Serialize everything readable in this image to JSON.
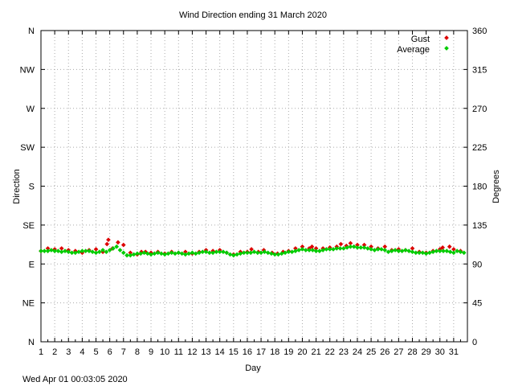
{
  "chart_data": {
    "type": "scatter",
    "title": "Wind Direction ending 31 March 2020",
    "xlabel": "Day",
    "ylabel_left": "Direction",
    "ylabel_right": "Degrees",
    "footer": "Wed Apr 01 00:03:05 2020",
    "xlim": [
      1,
      32
    ],
    "ylim": [
      0,
      360
    ],
    "grid": true,
    "legend_position": "top-right",
    "x_ticks": [
      "1",
      "2",
      "3",
      "4",
      "5",
      "6",
      "7",
      "8",
      "9",
      "10",
      "11",
      "12",
      "13",
      "14",
      "15",
      "16",
      "17",
      "18",
      "19",
      "20",
      "21",
      "22",
      "23",
      "24",
      "25",
      "26",
      "27",
      "28",
      "29",
      "30",
      "31"
    ],
    "y_ticks_left": [
      "N",
      "NE",
      "E",
      "SE",
      "S",
      "SW",
      "W",
      "NW",
      "N"
    ],
    "y_ticks_right": [
      "0",
      "45",
      "90",
      "135",
      "180",
      "225",
      "270",
      "315",
      "360"
    ],
    "series": [
      {
        "name": "Gust",
        "color": "#dd0000",
        "points": [
          [
            1.0,
            105
          ],
          [
            1.5,
            108
          ],
          [
            2.0,
            107
          ],
          [
            2.5,
            108
          ],
          [
            3.0,
            106
          ],
          [
            3.5,
            105
          ],
          [
            4.0,
            103
          ],
          [
            4.5,
            106
          ],
          [
            5.0,
            107
          ],
          [
            5.5,
            104
          ],
          [
            5.8,
            113
          ],
          [
            5.9,
            118
          ],
          [
            6.2,
            108
          ],
          [
            6.6,
            115
          ],
          [
            7.0,
            112
          ],
          [
            7.5,
            103
          ],
          [
            8.0,
            101
          ],
          [
            8.3,
            104
          ],
          [
            8.6,
            104
          ],
          [
            9.0,
            103
          ],
          [
            9.5,
            104
          ],
          [
            10.0,
            102
          ],
          [
            10.5,
            104
          ],
          [
            11.0,
            103
          ],
          [
            11.5,
            104
          ],
          [
            12.0,
            102
          ],
          [
            12.5,
            104
          ],
          [
            13.0,
            106
          ],
          [
            13.5,
            105
          ],
          [
            14.0,
            106
          ],
          [
            14.5,
            103
          ],
          [
            15.0,
            101
          ],
          [
            15.5,
            104
          ],
          [
            16.0,
            104
          ],
          [
            16.3,
            107
          ],
          [
            16.8,
            104
          ],
          [
            17.2,
            106
          ],
          [
            17.8,
            103
          ],
          [
            18.2,
            102
          ],
          [
            18.6,
            104
          ],
          [
            19.0,
            105
          ],
          [
            19.5,
            108
          ],
          [
            20.0,
            110
          ],
          [
            20.5,
            108
          ],
          [
            20.7,
            110
          ],
          [
            21.0,
            108
          ],
          [
            21.5,
            108
          ],
          [
            22.0,
            109
          ],
          [
            22.5,
            110
          ],
          [
            22.8,
            113
          ],
          [
            23.2,
            111
          ],
          [
            23.5,
            114
          ],
          [
            24.0,
            112
          ],
          [
            24.5,
            112
          ],
          [
            25.0,
            110
          ],
          [
            25.5,
            108
          ],
          [
            26.0,
            110
          ],
          [
            26.5,
            106
          ],
          [
            27.0,
            107
          ],
          [
            27.5,
            106
          ],
          [
            28.0,
            108
          ],
          [
            28.5,
            104
          ],
          [
            29.0,
            103
          ],
          [
            29.5,
            105
          ],
          [
            30.0,
            107
          ],
          [
            30.2,
            109
          ],
          [
            30.7,
            110
          ],
          [
            31.0,
            107
          ],
          [
            31.5,
            105
          ]
        ]
      },
      {
        "name": "Average",
        "color": "#00cc00",
        "points": [
          [
            1.0,
            105
          ],
          [
            1.25,
            105
          ],
          [
            1.5,
            105
          ],
          [
            1.75,
            106
          ],
          [
            2.0,
            105
          ],
          [
            2.25,
            105
          ],
          [
            2.5,
            104
          ],
          [
            2.75,
            105
          ],
          [
            3.0,
            104
          ],
          [
            3.25,
            103
          ],
          [
            3.5,
            103
          ],
          [
            3.75,
            104
          ],
          [
            4.0,
            105
          ],
          [
            4.25,
            105
          ],
          [
            4.5,
            105
          ],
          [
            4.75,
            104
          ],
          [
            5.0,
            103
          ],
          [
            5.25,
            104
          ],
          [
            5.5,
            106
          ],
          [
            5.75,
            104
          ],
          [
            6.0,
            106
          ],
          [
            6.25,
            108
          ],
          [
            6.5,
            110
          ],
          [
            6.75,
            106
          ],
          [
            7.0,
            103
          ],
          [
            7.25,
            100
          ],
          [
            7.5,
            100
          ],
          [
            7.75,
            101
          ],
          [
            8.0,
            102
          ],
          [
            8.25,
            102
          ],
          [
            8.5,
            103
          ],
          [
            8.75,
            102
          ],
          [
            9.0,
            101
          ],
          [
            9.25,
            102
          ],
          [
            9.5,
            103
          ],
          [
            9.75,
            102
          ],
          [
            10.0,
            101
          ],
          [
            10.25,
            102
          ],
          [
            10.5,
            103
          ],
          [
            10.75,
            102
          ],
          [
            11.0,
            103
          ],
          [
            11.25,
            102
          ],
          [
            11.5,
            101
          ],
          [
            11.75,
            102
          ],
          [
            12.0,
            103
          ],
          [
            12.25,
            102
          ],
          [
            12.5,
            103
          ],
          [
            12.75,
            104
          ],
          [
            13.0,
            104
          ],
          [
            13.25,
            103
          ],
          [
            13.5,
            103
          ],
          [
            13.75,
            104
          ],
          [
            14.0,
            104
          ],
          [
            14.25,
            104
          ],
          [
            14.5,
            103
          ],
          [
            14.75,
            101
          ],
          [
            15.0,
            100
          ],
          [
            15.25,
            101
          ],
          [
            15.5,
            102
          ],
          [
            15.75,
            103
          ],
          [
            16.0,
            103
          ],
          [
            16.25,
            103
          ],
          [
            16.5,
            104
          ],
          [
            16.75,
            103
          ],
          [
            17.0,
            103
          ],
          [
            17.25,
            104
          ],
          [
            17.5,
            103
          ],
          [
            17.75,
            102
          ],
          [
            18.0,
            101
          ],
          [
            18.25,
            101
          ],
          [
            18.5,
            102
          ],
          [
            18.75,
            103
          ],
          [
            19.0,
            104
          ],
          [
            19.25,
            104
          ],
          [
            19.5,
            105
          ],
          [
            19.75,
            106
          ],
          [
            20.0,
            107
          ],
          [
            20.25,
            106
          ],
          [
            20.5,
            106
          ],
          [
            20.75,
            106
          ],
          [
            21.0,
            105
          ],
          [
            21.25,
            105
          ],
          [
            21.5,
            106
          ],
          [
            21.75,
            107
          ],
          [
            22.0,
            107
          ],
          [
            22.25,
            107
          ],
          [
            22.5,
            108
          ],
          [
            22.75,
            108
          ],
          [
            23.0,
            108
          ],
          [
            23.25,
            109
          ],
          [
            23.5,
            110
          ],
          [
            23.75,
            110
          ],
          [
            24.0,
            109
          ],
          [
            24.25,
            109
          ],
          [
            24.5,
            109
          ],
          [
            24.75,
            108
          ],
          [
            25.0,
            107
          ],
          [
            25.25,
            106
          ],
          [
            25.5,
            107
          ],
          [
            25.75,
            107
          ],
          [
            26.0,
            106
          ],
          [
            26.25,
            104
          ],
          [
            26.5,
            105
          ],
          [
            26.75,
            106
          ],
          [
            27.0,
            105
          ],
          [
            27.25,
            105
          ],
          [
            27.5,
            106
          ],
          [
            27.75,
            105
          ],
          [
            28.0,
            104
          ],
          [
            28.25,
            103
          ],
          [
            28.5,
            103
          ],
          [
            28.75,
            103
          ],
          [
            29.0,
            102
          ],
          [
            29.25,
            103
          ],
          [
            29.5,
            104
          ],
          [
            29.75,
            105
          ],
          [
            30.0,
            105
          ],
          [
            30.25,
            105
          ],
          [
            30.5,
            105
          ],
          [
            30.75,
            104
          ],
          [
            31.0,
            103
          ],
          [
            31.25,
            105
          ],
          [
            31.5,
            104
          ],
          [
            31.75,
            103
          ]
        ]
      }
    ]
  }
}
